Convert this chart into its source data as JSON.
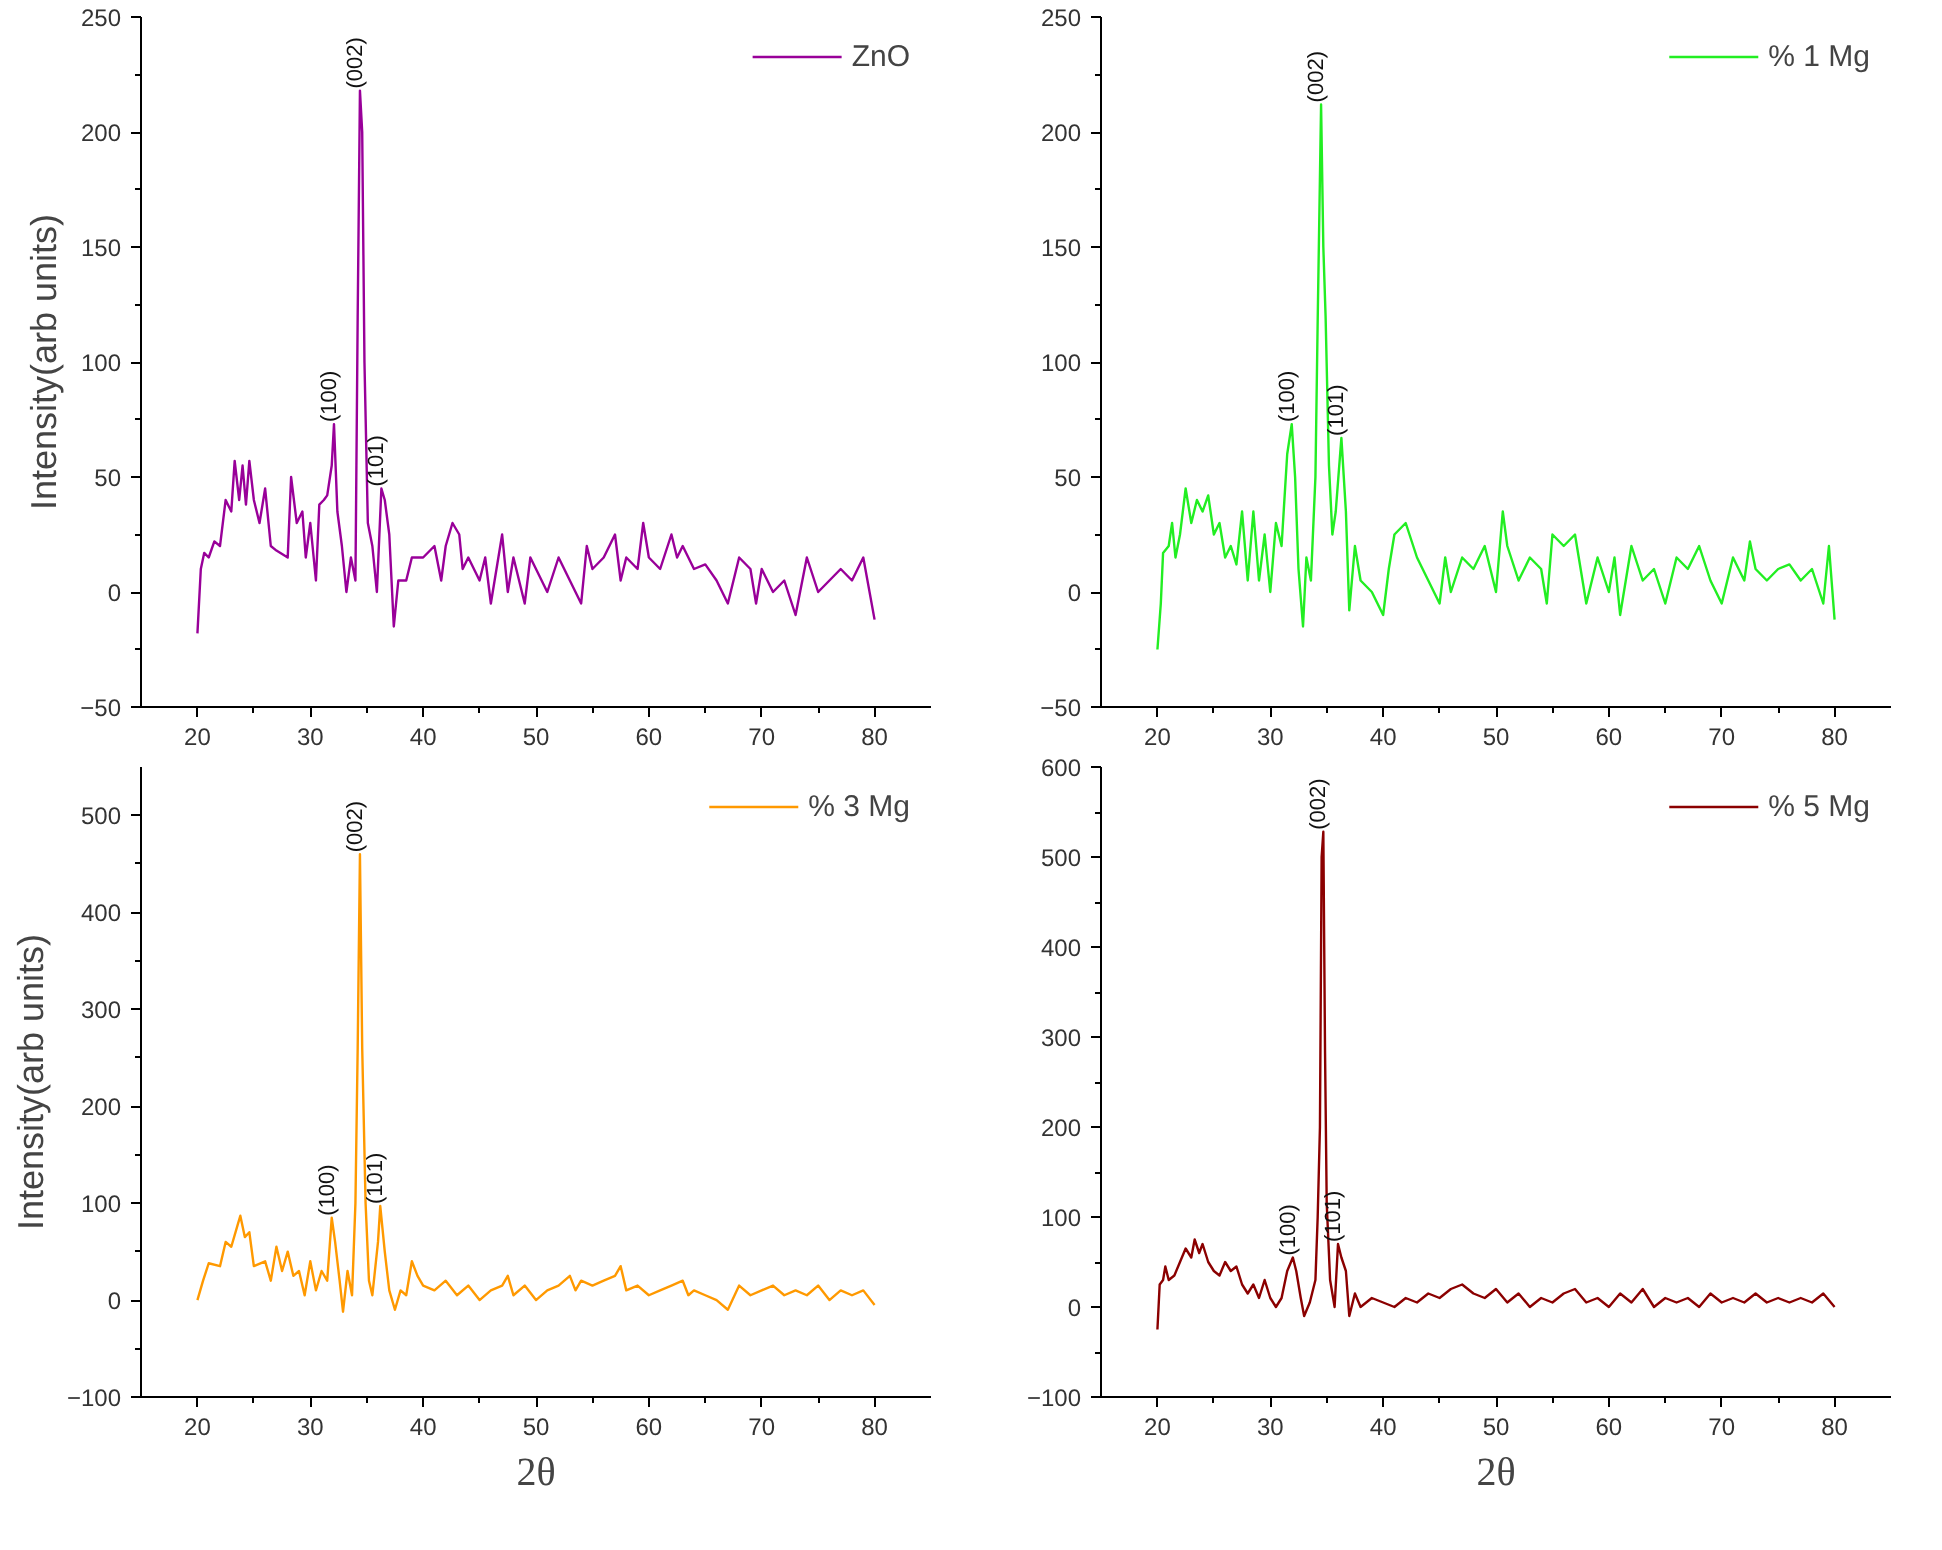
{
  "chart_data": [
    {
      "type": "line",
      "ylabel": "Intensity(arb units)",
      "xlim": [
        15,
        85
      ],
      "xticks": [
        20,
        30,
        40,
        50,
        60,
        70,
        80
      ],
      "ylim": [
        -50,
        250
      ],
      "yticks": [
        -50,
        0,
        50,
        100,
        150,
        200,
        250
      ],
      "legend": "top right",
      "grid": false,
      "series": [
        {
          "name": "ZnO",
          "color": "#990099",
          "x": [
            20,
            20.3,
            20.6,
            21,
            21.5,
            22,
            22.5,
            23,
            23.3,
            23.7,
            24,
            24.3,
            24.6,
            25,
            25.5,
            26,
            26.5,
            27,
            28,
            28.3,
            28.8,
            29.3,
            29.6,
            30,
            30.5,
            30.8,
            31.2,
            31.5,
            31.9,
            32.1,
            32.4,
            32.8,
            33.2,
            33.6,
            34,
            34.2,
            34.4,
            34.6,
            34.8,
            35.1,
            35.5,
            35.9,
            36.3,
            36.6,
            37,
            37.4,
            37.8,
            38.5,
            39,
            40,
            41,
            41.6,
            42,
            42.6,
            43.2,
            43.5,
            44,
            45,
            45.5,
            46,
            47,
            47.5,
            48,
            49,
            49.5,
            50,
            51,
            52,
            53,
            54,
            54.5,
            55,
            56,
            57,
            57.5,
            58,
            59,
            59.5,
            60,
            61,
            62,
            62.5,
            63,
            64,
            65,
            66,
            67,
            68,
            69,
            69.5,
            70,
            71,
            72,
            73,
            74,
            75,
            76,
            77,
            78,
            79,
            80
          ],
          "values": [
            -18,
            10,
            17,
            15,
            22,
            20,
            40,
            35,
            57,
            40,
            55,
            38,
            57,
            40,
            30,
            45,
            20,
            18,
            15,
            50,
            30,
            35,
            15,
            30,
            5,
            38,
            40,
            42,
            55,
            73,
            35,
            20,
            0,
            15,
            5,
            120,
            218,
            200,
            100,
            30,
            20,
            0,
            45,
            40,
            25,
            -15,
            5,
            5,
            15,
            15,
            20,
            5,
            20,
            30,
            25,
            10,
            15,
            5,
            15,
            -5,
            25,
            0,
            15,
            -5,
            15,
            10,
            0,
            15,
            5,
            -5,
            20,
            10,
            15,
            25,
            5,
            15,
            10,
            30,
            15,
            10,
            25,
            15,
            20,
            10,
            12,
            5,
            -5,
            15,
            10,
            -5,
            10,
            0,
            5,
            -10,
            15,
            0,
            5,
            10,
            5,
            15,
            -12
          ]
        }
      ],
      "annotations": [
        {
          "text": "(100)",
          "x": 32.1,
          "y": 73
        },
        {
          "text": "(002)",
          "x": 34.4,
          "y": 218
        },
        {
          "text": "(101)",
          "x": 36.3,
          "y": 45
        }
      ]
    },
    {
      "type": "line",
      "xlim": [
        15,
        85
      ],
      "xticks": [
        20,
        30,
        40,
        50,
        60,
        70,
        80
      ],
      "ylim": [
        -50,
        250
      ],
      "yticks": [
        -50,
        0,
        50,
        100,
        150,
        200,
        250
      ],
      "legend": "top right",
      "grid": false,
      "series": [
        {
          "name": "% 1 Mg",
          "color": "#22ee22",
          "x": [
            20,
            20.3,
            20.5,
            21,
            21.3,
            21.6,
            22,
            22.5,
            23,
            23.5,
            24,
            24.5,
            25,
            25.5,
            26,
            26.5,
            27,
            27.5,
            28,
            28.5,
            29,
            29.5,
            30,
            30.5,
            31,
            31.5,
            31.9,
            32.2,
            32.5,
            32.9,
            33.2,
            33.6,
            34,
            34.2,
            34.5,
            34.7,
            34.9,
            35.2,
            35.5,
            35.8,
            36.3,
            36.7,
            37,
            37.5,
            38,
            39,
            40,
            40.5,
            41,
            42,
            43,
            44,
            45,
            45.5,
            46,
            47,
            48,
            49,
            50,
            50.6,
            51,
            52,
            53,
            54,
            54.5,
            55,
            56,
            57,
            57.5,
            58,
            59,
            60,
            60.5,
            61,
            62,
            63,
            64,
            65,
            66,
            67,
            68,
            69,
            70,
            71,
            72,
            72.5,
            73,
            74,
            75,
            76,
            77,
            78,
            79,
            79.5,
            80
          ],
          "values": [
            -25,
            -5,
            17,
            20,
            30,
            15,
            25,
            45,
            30,
            40,
            35,
            42,
            25,
            30,
            15,
            20,
            12,
            35,
            5,
            35,
            5,
            25,
            0,
            30,
            20,
            60,
            73,
            50,
            10,
            -15,
            15,
            5,
            50,
            118,
            212,
            150,
            120,
            55,
            25,
            35,
            67,
            35,
            -8,
            20,
            5,
            0,
            -10,
            10,
            25,
            30,
            15,
            5,
            -5,
            15,
            0,
            15,
            10,
            20,
            0,
            35,
            20,
            5,
            15,
            10,
            -5,
            25,
            20,
            25,
            10,
            -5,
            15,
            0,
            15,
            -10,
            20,
            5,
            10,
            -5,
            15,
            10,
            20,
            5,
            -5,
            15,
            5,
            22,
            10,
            5,
            10,
            12,
            5,
            10,
            -5,
            20,
            -12
          ]
        }
      ],
      "annotations": [
        {
          "text": "(100)",
          "x": 31.9,
          "y": 73
        },
        {
          "text": "(002)",
          "x": 34.5,
          "y": 212
        },
        {
          "text": "(101)",
          "x": 36.3,
          "y": 67
        }
      ]
    },
    {
      "type": "line",
      "xlabel": "2θ",
      "ylabel": "Intensity(arb units)",
      "xlim": [
        15,
        85
      ],
      "xticks": [
        20,
        30,
        40,
        50,
        60,
        70,
        80
      ],
      "ylim": [
        -100,
        550
      ],
      "yticks": [
        -100,
        0,
        100,
        200,
        300,
        400,
        500
      ],
      "legend": "top right",
      "grid": false,
      "series": [
        {
          "name": "% 3 Mg",
          "color": "#ff9900",
          "x": [
            20,
            20.5,
            21,
            22,
            22.5,
            23,
            23.5,
            23.8,
            24.2,
            24.6,
            25,
            26,
            26.5,
            27,
            27.5,
            28,
            28.5,
            29,
            29.5,
            30,
            30.5,
            31,
            31.5,
            31.9,
            32.2,
            32.6,
            32.9,
            33.3,
            33.7,
            34,
            34.2,
            34.4,
            34.6,
            34.9,
            35.2,
            35.5,
            36,
            36.2,
            36.6,
            37,
            37.5,
            38,
            38.5,
            39,
            39.5,
            40,
            41,
            42,
            43,
            44,
            45,
            46,
            47,
            47.5,
            48,
            49,
            50,
            51,
            52,
            53,
            53.5,
            54,
            55,
            56,
            57,
            57.5,
            58,
            59,
            60,
            61,
            62,
            63,
            63.5,
            64,
            65,
            66,
            67,
            68,
            69,
            70,
            71,
            72,
            73,
            74,
            75,
            76,
            77,
            78,
            79,
            80
          ],
          "values": [
            0,
            20,
            38,
            35,
            60,
            55,
            75,
            87,
            65,
            70,
            35,
            40,
            20,
            55,
            30,
            50,
            25,
            30,
            5,
            40,
            10,
            30,
            20,
            85,
            60,
            20,
            -12,
            30,
            5,
            100,
            260,
            460,
            260,
            100,
            20,
            5,
            60,
            97,
            50,
            10,
            -10,
            10,
            5,
            40,
            25,
            15,
            10,
            20,
            5,
            15,
            0,
            10,
            15,
            25,
            5,
            15,
            0,
            10,
            15,
            25,
            10,
            20,
            15,
            20,
            25,
            35,
            10,
            15,
            5,
            10,
            15,
            20,
            5,
            10,
            5,
            0,
            -10,
            15,
            5,
            10,
            15,
            5,
            10,
            5,
            15,
            0,
            10,
            5,
            10,
            -5
          ]
        }
      ],
      "annotations": [
        {
          "text": "(100)",
          "x": 31.9,
          "y": 85
        },
        {
          "text": "(002)",
          "x": 34.4,
          "y": 460
        },
        {
          "text": "(101)",
          "x": 36.2,
          "y": 97
        }
      ]
    },
    {
      "type": "line",
      "xlabel": "2θ",
      "xlim": [
        15,
        85
      ],
      "xticks": [
        20,
        30,
        40,
        50,
        60,
        70,
        80
      ],
      "ylim": [
        -100,
        600
      ],
      "yticks": [
        -100,
        0,
        100,
        200,
        300,
        400,
        500,
        600
      ],
      "legend": "top right",
      "grid": false,
      "series": [
        {
          "name": "% 5 Mg",
          "color": "#8b0000",
          "x": [
            20,
            20.2,
            20.5,
            20.7,
            21,
            21.5,
            22,
            22.5,
            23,
            23.3,
            23.7,
            24,
            24.5,
            25,
            25.5,
            26,
            26.5,
            27,
            27.5,
            28,
            28.5,
            29,
            29.5,
            30,
            30.5,
            31,
            31.5,
            32,
            32.3,
            32.7,
            33,
            33.5,
            34,
            34.2,
            34.4,
            34.55,
            34.7,
            34.85,
            35,
            35.3,
            35.7,
            36,
            36.3,
            36.7,
            37,
            37.5,
            38,
            39,
            40,
            41,
            42,
            43,
            44,
            45,
            46,
            47,
            48,
            49,
            50,
            51,
            52,
            53,
            54,
            55,
            56,
            57,
            58,
            59,
            60,
            61,
            62,
            63,
            64,
            65,
            66,
            67,
            68,
            69,
            70,
            71,
            72,
            73,
            74,
            75,
            76,
            77,
            78,
            79,
            80
          ],
          "values": [
            -25,
            25,
            30,
            45,
            30,
            35,
            50,
            65,
            55,
            75,
            60,
            70,
            50,
            40,
            35,
            50,
            40,
            45,
            25,
            15,
            25,
            10,
            30,
            10,
            0,
            10,
            40,
            55,
            40,
            10,
            -10,
            5,
            30,
            100,
            200,
            500,
            528,
            285,
            115,
            30,
            0,
            70,
            55,
            40,
            -10,
            15,
            0,
            10,
            5,
            0,
            10,
            5,
            15,
            10,
            20,
            25,
            15,
            10,
            20,
            5,
            15,
            0,
            10,
            5,
            15,
            20,
            5,
            10,
            0,
            15,
            5,
            20,
            0,
            10,
            5,
            10,
            0,
            15,
            5,
            10,
            5,
            15,
            5,
            10,
            5,
            10,
            5,
            15,
            0
          ]
        }
      ],
      "annotations": [
        {
          "text": "(100)",
          "x": 32,
          "y": 55
        },
        {
          "text": "(002)",
          "x": 34.7,
          "y": 528
        },
        {
          "text": "(101)",
          "x": 36,
          "y": 70
        }
      ]
    }
  ]
}
